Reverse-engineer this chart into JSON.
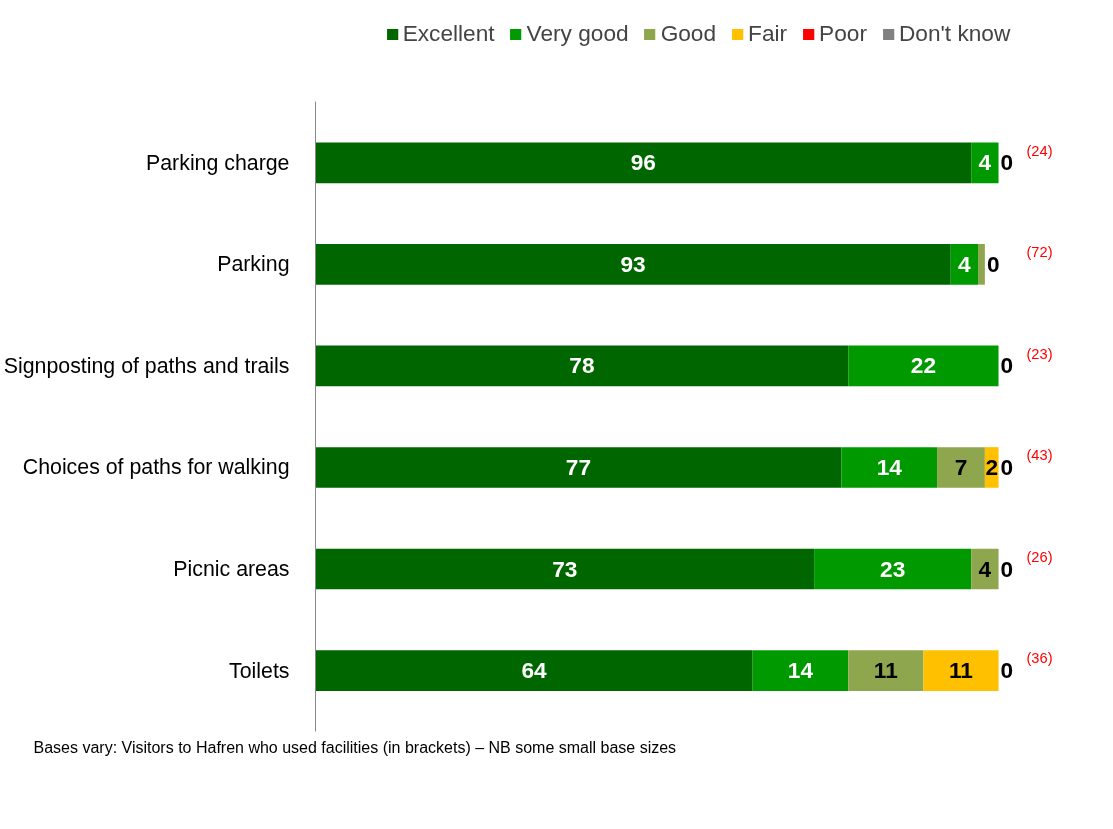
{
  "chart_data": {
    "type": "bar",
    "orientation": "horizontal",
    "stacked": true,
    "legend": "top",
    "grid": false,
    "tick_labels": "y",
    "categories": [
      "Parking charge",
      "Parking",
      "Signposting of paths and trails",
      "Choices of paths for walking",
      "Picnic areas",
      "Toilets"
    ],
    "series": [
      {
        "name": "Excellent",
        "color": "#006600",
        "values": [
          96,
          93,
          78,
          77,
          73,
          64
        ],
        "value_labels": [
          "96",
          "93",
          "78",
          "77",
          "73",
          "64"
        ]
      },
      {
        "name": "Very good",
        "color": "#009900",
        "values": [
          4,
          4,
          22,
          14,
          23,
          14
        ],
        "value_labels": [
          "4",
          "4",
          "22",
          "14",
          "23",
          "14"
        ]
      },
      {
        "name": "Good",
        "color": "#8ea64e",
        "values": [
          null,
          1,
          null,
          7,
          4,
          11
        ],
        "value_labels": [
          null,
          null,
          null,
          "7",
          "4",
          "11"
        ]
      },
      {
        "name": "Fair",
        "color": "#ffc000",
        "values": [
          null,
          null,
          null,
          2,
          null,
          11
        ],
        "value_labels": [
          null,
          null,
          null,
          "2",
          null,
          "11"
        ]
      },
      {
        "name": "Poor",
        "color": "#ff0000",
        "values": [
          0,
          0,
          0,
          0,
          0,
          0
        ],
        "value_labels": [
          "0",
          "0",
          "0",
          "0",
          "0",
          "0"
        ]
      },
      {
        "name": "Don't know",
        "color": "#808080",
        "values": [
          0,
          0,
          0,
          0,
          0,
          0
        ]
      }
    ],
    "annotations": [
      "(24)",
      "(72)",
      "(23)",
      "(43)",
      "(26)",
      "(36)",
      "Bases vary: Visitors to Hafren who  used facilities (in brackets) – NB some small base sizes"
    ]
  }
}
